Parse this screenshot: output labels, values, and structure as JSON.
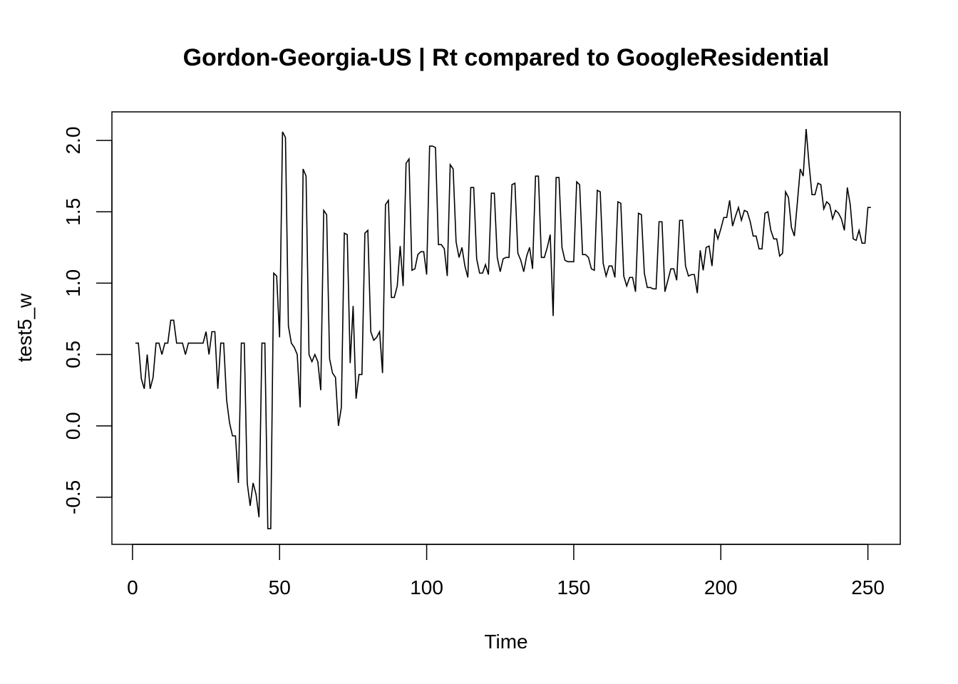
{
  "chart_data": {
    "type": "line",
    "title": "Gordon-Georgia-US | Rt compared to GoogleResidential",
    "xlabel": "Time",
    "ylabel": "test5_w",
    "xlim": [
      -7,
      261
    ],
    "ylim": [
      -0.83,
      2.2
    ],
    "x_ticks": [
      0,
      50,
      100,
      150,
      200,
      250
    ],
    "x_tick_labels": [
      "0",
      "50",
      "100",
      "150",
      "200",
      "250"
    ],
    "y_ticks": [
      -0.5,
      0.0,
      0.5,
      1.0,
      1.5,
      2.0
    ],
    "y_tick_labels": [
      "-0.5",
      "0.0",
      "0.5",
      "1.0",
      "1.5",
      "2.0"
    ],
    "grid": false,
    "legend": "none",
    "x_start": 1,
    "series": [
      {
        "values": [
          0.58,
          0.58,
          0.33,
          0.26,
          0.5,
          0.26,
          0.34,
          0.58,
          0.58,
          0.5,
          0.58,
          0.58,
          0.74,
          0.74,
          0.58,
          0.58,
          0.58,
          0.5,
          0.58,
          0.58,
          0.58,
          0.58,
          0.58,
          0.58,
          0.66,
          0.5,
          0.66,
          0.66,
          0.26,
          0.58,
          0.58,
          0.18,
          0.02,
          -0.07,
          -0.07,
          -0.4,
          0.58,
          0.58,
          -0.4,
          -0.56,
          -0.4,
          -0.48,
          -0.64,
          0.58,
          0.58,
          -0.72,
          -0.72,
          1.07,
          1.05,
          0.62,
          2.06,
          2.02,
          0.7,
          0.58,
          0.55,
          0.5,
          0.13,
          1.8,
          1.75,
          0.5,
          0.45,
          0.5,
          0.45,
          0.25,
          1.51,
          1.48,
          0.47,
          0.37,
          0.34,
          0.0,
          0.13,
          1.35,
          1.34,
          0.44,
          0.84,
          0.19,
          0.36,
          0.36,
          1.35,
          1.37,
          0.66,
          0.6,
          0.62,
          0.66,
          0.37,
          1.55,
          1.58,
          0.9,
          0.9,
          0.98,
          1.26,
          0.98,
          1.84,
          1.87,
          1.09,
          1.1,
          1.2,
          1.22,
          1.22,
          1.06,
          1.96,
          1.96,
          1.95,
          1.27,
          1.27,
          1.24,
          1.05,
          1.83,
          1.8,
          1.29,
          1.18,
          1.25,
          1.12,
          1.04,
          1.67,
          1.67,
          1.17,
          1.07,
          1.07,
          1.13,
          1.06,
          1.63,
          1.63,
          1.18,
          1.08,
          1.17,
          1.18,
          1.18,
          1.69,
          1.7,
          1.21,
          1.16,
          1.08,
          1.19,
          1.25,
          1.1,
          1.75,
          1.75,
          1.18,
          1.18,
          1.25,
          1.34,
          0.77,
          1.74,
          1.74,
          1.25,
          1.16,
          1.15,
          1.15,
          1.15,
          1.71,
          1.69,
          1.2,
          1.2,
          1.18,
          1.1,
          1.09,
          1.65,
          1.64,
          1.14,
          1.05,
          1.12,
          1.12,
          1.04,
          1.57,
          1.56,
          1.05,
          0.98,
          1.04,
          1.04,
          0.94,
          1.49,
          1.48,
          1.07,
          0.97,
          0.97,
          0.96,
          0.96,
          1.43,
          1.43,
          0.94,
          1.02,
          1.1,
          1.1,
          1.02,
          1.44,
          1.44,
          1.12,
          1.05,
          1.06,
          1.06,
          0.93,
          1.23,
          1.09,
          1.25,
          1.26,
          1.12,
          1.38,
          1.31,
          1.38,
          1.46,
          1.46,
          1.58,
          1.4,
          1.47,
          1.53,
          1.44,
          1.51,
          1.5,
          1.43,
          1.33,
          1.33,
          1.24,
          1.24,
          1.49,
          1.5,
          1.37,
          1.31,
          1.31,
          1.19,
          1.21,
          1.64,
          1.6,
          1.39,
          1.33,
          1.56,
          1.8,
          1.75,
          2.08,
          1.83,
          1.62,
          1.62,
          1.7,
          1.69,
          1.52,
          1.57,
          1.55,
          1.45,
          1.51,
          1.49,
          1.45,
          1.37,
          1.67,
          1.55,
          1.31,
          1.3,
          1.37,
          1.28,
          1.28,
          1.53,
          1.53
        ]
      }
    ]
  }
}
